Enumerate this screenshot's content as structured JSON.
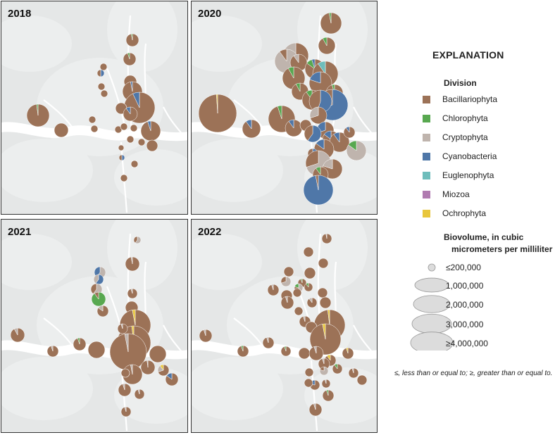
{
  "colors": {
    "Bacillariophyta": "#9c7257",
    "Chlorophyta": "#58a850",
    "Cryptophyta": "#bfb4ad",
    "Cyanobacteria": "#4f77a8",
    "Euglenophyta": "#6ebdbb",
    "Miozoa": "#b07bb0",
    "Ochrophyta": "#e8c63c"
  },
  "panels": [
    {
      "year": "2018"
    },
    {
      "year": "2020"
    },
    {
      "year": "2021"
    },
    {
      "year": "2022"
    }
  ],
  "legend": {
    "title": "EXPLANATION",
    "division_heading": "Division",
    "divisions": [
      "Bacillariophyta",
      "Chlorophyta",
      "Cryptophyta",
      "Cyanobacteria",
      "Euglenophyta",
      "Miozoa",
      "Ochrophyta"
    ],
    "size_heading_line1": "Biovolume, in cubic",
    "size_heading_line2": "micrometers per milliliter",
    "sizes": [
      "≤200,000",
      "1,000,000",
      "2,000,000",
      "3,000,000",
      "≥4,000,000"
    ],
    "note": "≤, less than or equal to; ≥, greater than or equal to."
  }
}
